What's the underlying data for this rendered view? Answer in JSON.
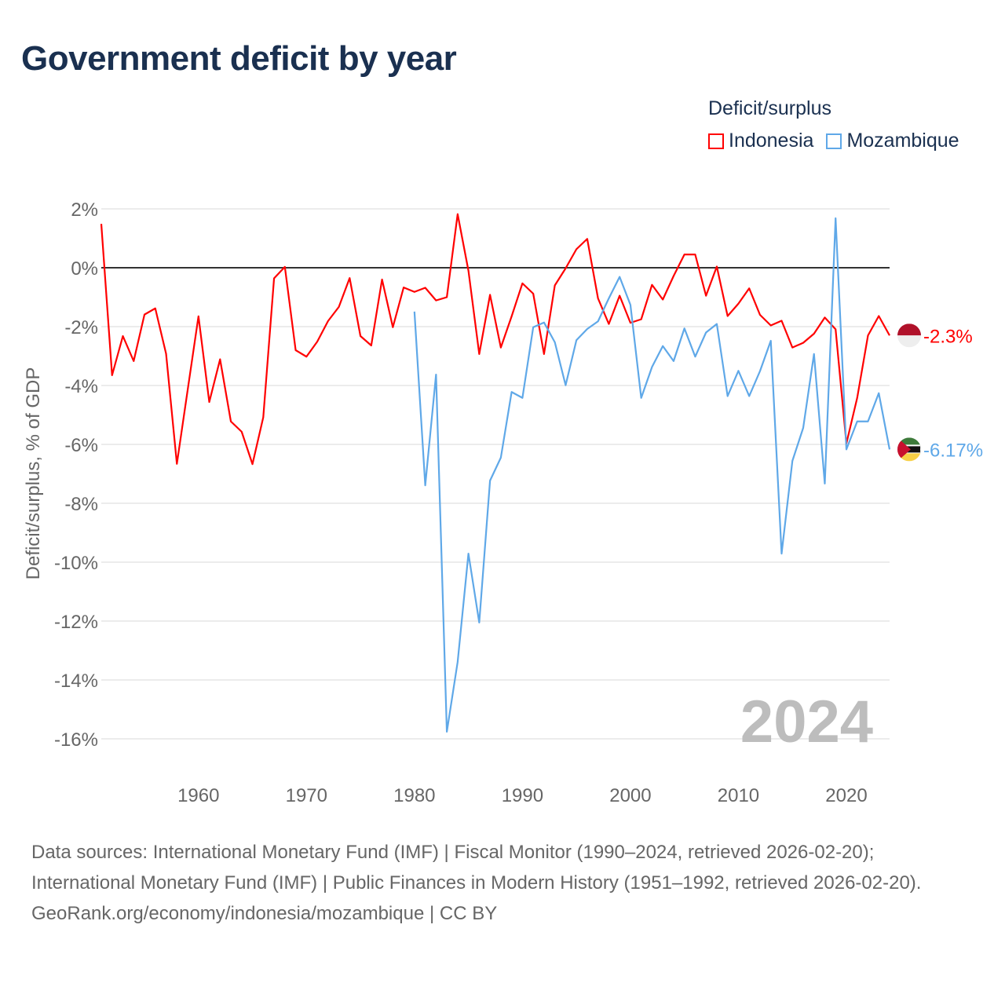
{
  "title": "Government deficit by year",
  "legend": {
    "title": "Deficit/surplus",
    "items": [
      {
        "label": "Indonesia",
        "color": "#ff0000"
      },
      {
        "label": "Mozambique",
        "color": "#5fa8e8"
      }
    ]
  },
  "year_label": "2024",
  "sources": {
    "line1": "Data sources: International Monetary Fund (IMF) | Fiscal Monitor (1990–2024, retrieved 2026-02-20); International Monetary Fund (IMF) | Public Finances in Modern History (1951–1992, retrieved 2026-02-20).",
    "line2": "GeoRank.org/economy/indonesia/mozambique | CC BY"
  },
  "chart_data": {
    "type": "line",
    "title": "Government deficit by year",
    "ylabel": "Deficit/surplus, % of GDP",
    "xlabel": "",
    "xlim": [
      1951,
      2024
    ],
    "ylim": [
      -16,
      2
    ],
    "xticks": [
      1960,
      1970,
      1980,
      1990,
      2000,
      2010,
      2020
    ],
    "yticks": [
      2,
      0,
      -2,
      -4,
      -6,
      -8,
      -10,
      -12,
      -14,
      -16
    ],
    "ytick_labels": [
      "2%",
      "0%",
      "-2%",
      "-4%",
      "-6%",
      "-8%",
      "-10%",
      "-12%",
      "-14%",
      "-16%"
    ],
    "grid": true,
    "legend_position": "top-right",
    "series": [
      {
        "name": "Indonesia",
        "color": "#ff0000",
        "start_year": 1951,
        "end_label": "-2.3%",
        "values": [
          1.49,
          -3.65,
          -2.32,
          -3.17,
          -1.59,
          -1.38,
          -2.92,
          -6.66,
          -4.15,
          -1.65,
          -4.56,
          -3.11,
          -5.22,
          -5.57,
          -6.67,
          -5.08,
          -0.36,
          0.03,
          -2.8,
          -3.02,
          -2.51,
          -1.81,
          -1.33,
          -0.35,
          -2.32,
          -2.64,
          -0.4,
          -2.02,
          -0.67,
          -0.82,
          -0.68,
          -1.11,
          -1.0,
          1.82,
          -0.1,
          -2.93,
          -0.92,
          -2.71,
          -1.65,
          -0.53,
          -0.88,
          -2.93,
          -0.6,
          -0.02,
          0.63,
          0.98,
          -1.04,
          -1.91,
          -0.95,
          -1.87,
          -1.75,
          -0.58,
          -1.08,
          -0.28,
          0.45,
          0.45,
          -0.95,
          0.04,
          -1.64,
          -1.22,
          -0.7,
          -1.6,
          -1.96,
          -1.8,
          -2.71,
          -2.55,
          -2.24,
          -1.69,
          -2.09,
          -5.97,
          -4.42,
          -2.3,
          -1.64,
          -2.3
        ]
      },
      {
        "name": "Mozambique",
        "color": "#5fa8e8",
        "start_year": 1980,
        "end_label": "-6.17%",
        "values": [
          -1.49,
          -7.39,
          -3.63,
          -15.76,
          -13.39,
          -9.71,
          -12.05,
          -7.23,
          -6.45,
          -4.22,
          -4.42,
          -2.02,
          -1.86,
          -2.53,
          -3.99,
          -2.46,
          -2.08,
          -1.82,
          -1.04,
          -0.31,
          -1.26,
          -4.42,
          -3.37,
          -2.66,
          -3.17,
          -2.06,
          -3.02,
          -2.2,
          -1.91,
          -4.36,
          -3.5,
          -4.36,
          -3.51,
          -2.48,
          -9.71,
          -6.56,
          -5.44,
          -2.93,
          -7.33,
          1.68,
          -6.17,
          -5.22,
          -5.22,
          -4.26,
          -6.17
        ]
      }
    ]
  }
}
